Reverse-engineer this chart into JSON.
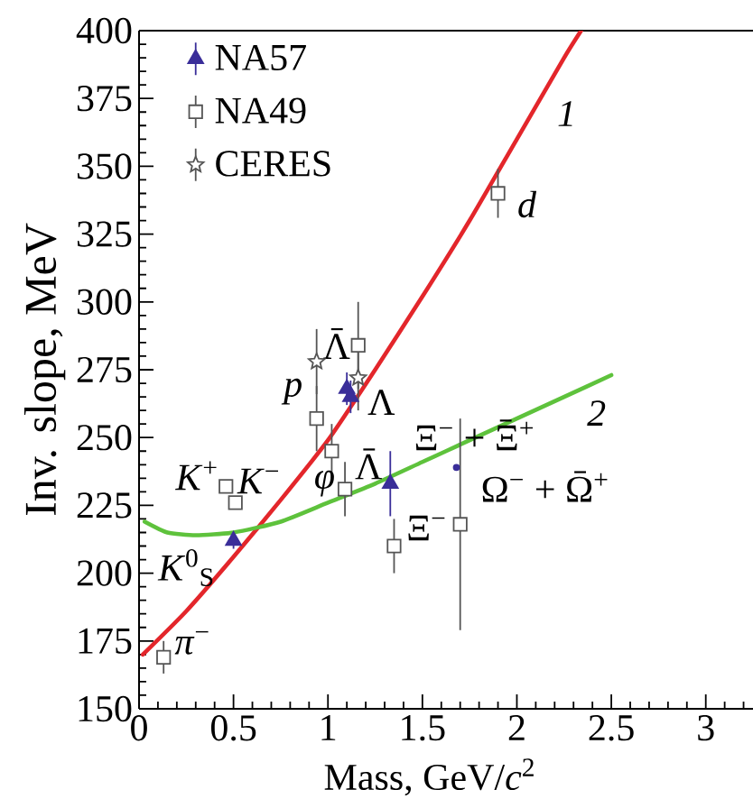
{
  "chart_data": {
    "type": "scatter",
    "xlabel": "Mass, GeV/*c*$^{2}$",
    "ylabel": "Inv. slope, MeV",
    "legend": "top left",
    "xlim": [
      0,
      3.25
    ],
    "ylim": [
      150,
      400
    ],
    "xticks": [
      0,
      {
        "value": 0.1,
        "label": null
      },
      {
        "value": 0.2,
        "label": null
      },
      {
        "value": 0.3,
        "label": null
      },
      {
        "value": 0.4,
        "label": null
      },
      0.5,
      {
        "value": 0.6,
        "label": null
      },
      {
        "value": 0.7,
        "label": null
      },
      {
        "value": 0.8,
        "label": null
      },
      {
        "value": 0.9,
        "label": null
      },
      1,
      {
        "value": 1.1,
        "label": null
      },
      {
        "value": 1.2,
        "label": null
      },
      {
        "value": 1.3,
        "label": null
      },
      {
        "value": 1.4,
        "label": null
      },
      1.5,
      {
        "value": 1.6,
        "label": null
      },
      {
        "value": 1.7,
        "label": null
      },
      {
        "value": 1.8,
        "label": null
      },
      {
        "value": 1.9,
        "label": null
      },
      2,
      {
        "value": 2.1,
        "label": null
      },
      {
        "value": 2.2,
        "label": null
      },
      {
        "value": 2.3,
        "label": null
      },
      {
        "value": 2.4,
        "label": null
      },
      2.5,
      {
        "value": 2.6,
        "label": null
      },
      {
        "value": 2.7,
        "label": null
      },
      {
        "value": 2.8,
        "label": null
      },
      {
        "value": 2.9,
        "label": null
      },
      3,
      {
        "value": 3.1,
        "label": null
      },
      {
        "value": 3.2,
        "label": null
      }
    ],
    "yticks": [
      150,
      {
        "value": 155,
        "label": null
      },
      {
        "value": 160,
        "label": null
      },
      {
        "value": 165,
        "label": null
      },
      {
        "value": 170,
        "label": null
      },
      175,
      {
        "value": 180,
        "label": null
      },
      {
        "value": 185,
        "label": null
      },
      {
        "value": 190,
        "label": null
      },
      {
        "value": 195,
        "label": null
      },
      200,
      {
        "value": 205,
        "label": null
      },
      {
        "value": 210,
        "label": null
      },
      {
        "value": 215,
        "label": null
      },
      {
        "value": 220,
        "label": null
      },
      225,
      {
        "value": 230,
        "label": null
      },
      {
        "value": 235,
        "label": null
      },
      {
        "value": 240,
        "label": null
      },
      {
        "value": 245,
        "label": null
      },
      250,
      {
        "value": 255,
        "label": null
      },
      {
        "value": 260,
        "label": null
      },
      {
        "value": 265,
        "label": null
      },
      {
        "value": 270,
        "label": null
      },
      275,
      {
        "value": 280,
        "label": null
      },
      {
        "value": 285,
        "label": null
      },
      {
        "value": 290,
        "label": null
      },
      {
        "value": 295,
        "label": null
      },
      300,
      {
        "value": 305,
        "label": null
      },
      {
        "value": 310,
        "label": null
      },
      {
        "value": 315,
        "label": null
      },
      {
        "value": 320,
        "label": null
      },
      325,
      {
        "value": 330,
        "label": null
      },
      {
        "value": 335,
        "label": null
      },
      {
        "value": 340,
        "label": null
      },
      {
        "value": 345,
        "label": null
      },
      350,
      {
        "value": 355,
        "label": null
      },
      {
        "value": 360,
        "label": null
      },
      {
        "value": 365,
        "label": null
      },
      {
        "value": 370,
        "label": null
      },
      375,
      {
        "value": 380,
        "label": null
      },
      {
        "value": 385,
        "label": null
      },
      {
        "value": 390,
        "label": null
      },
      {
        "value": 395,
        "label": null
      },
      400
    ],
    "series": [
      {
        "name": "NA57",
        "marker": "triangle",
        "color": "#3a2e99",
        "x": [
          0.5,
          1.1,
          1.12,
          1.33
        ],
        "values": [
          212,
          268,
          265,
          233
        ],
        "errors": [
          3,
          6,
          6,
          12
        ]
      },
      {
        "name": "NA49",
        "marker": "square",
        "color": "#555555",
        "x": [
          0.13,
          0.46,
          0.51,
          0.94,
          1.02,
          1.09,
          1.16,
          1.35,
          1.7,
          1.9
        ],
        "values": [
          169,
          232,
          226,
          257,
          245,
          231,
          284,
          210,
          218,
          340
        ],
        "errors": [
          6,
          null,
          null,
          12,
          10,
          10,
          16,
          10,
          39,
          9
        ]
      },
      {
        "name": "CERES",
        "marker": "star",
        "color": "#555555",
        "x": [
          0.94,
          1.16
        ],
        "values": [
          278,
          272
        ],
        "errors": [
          12,
          12
        ]
      },
      {
        "marker": "circle",
        "color": "#3a2e99",
        "x": [
          1.68
        ],
        "values": [
          239
        ]
      },
      {
        "name": "1",
        "type": "line",
        "color": "#e3262b",
        "x": [
          0.02,
          0.25,
          0.5,
          0.75,
          1.0,
          1.25,
          1.5,
          1.75,
          2.0,
          2.25,
          2.34
        ],
        "values": [
          170,
          186,
          206,
          227,
          249,
          275,
          302,
          330,
          360,
          390,
          400
        ]
      },
      {
        "name": "2",
        "type": "line",
        "color": "#5ec23c",
        "x": [
          0.03,
          0.15,
          0.3,
          0.5,
          0.75,
          1.0,
          1.25,
          1.5,
          1.75,
          2.0,
          2.25,
          2.5
        ],
        "values": [
          219,
          215,
          214,
          215,
          219,
          226,
          233,
          241,
          249,
          257,
          265,
          273
        ]
      }
    ],
    "annotations": [
      {
        "text": "*d*",
        "x": 1.9,
        "y": 340
      },
      {
        "text": "*p*",
        "x": 0.94,
        "y": 257
      },
      {
        "text": "Λ̄",
        "x": 1.16,
        "y": 284
      },
      {
        "text": "Λ",
        "x": 1.12,
        "y": 265
      },
      {
        "text": "*K*$^{+}$",
        "x": 0.46,
        "y": 232
      },
      {
        "text": "*K*$^{−}$",
        "x": 0.51,
        "y": 226
      },
      {
        "text": "*φ*",
        "x": 1.02,
        "y": 245
      },
      {
        "text": "Λ̄",
        "x": 1.33,
        "y": 233
      },
      {
        "text": "Ξ$^{−}$ + Ξ̄$^{+}$",
        "x": 1.68,
        "y": 239
      },
      {
        "text": "Ω$^{−}$ + Ω̄$^{+}$",
        "x": 1.7,
        "y": 218
      },
      {
        "text": "Ξ$^{−}$",
        "x": 1.35,
        "y": 210
      },
      {
        "text": "*K*$^{0}$$_{S}$",
        "x": 0.5,
        "y": 212
      },
      {
        "text": "*π*$^{−}$",
        "x": 0.13,
        "y": 169
      }
    ]
  }
}
